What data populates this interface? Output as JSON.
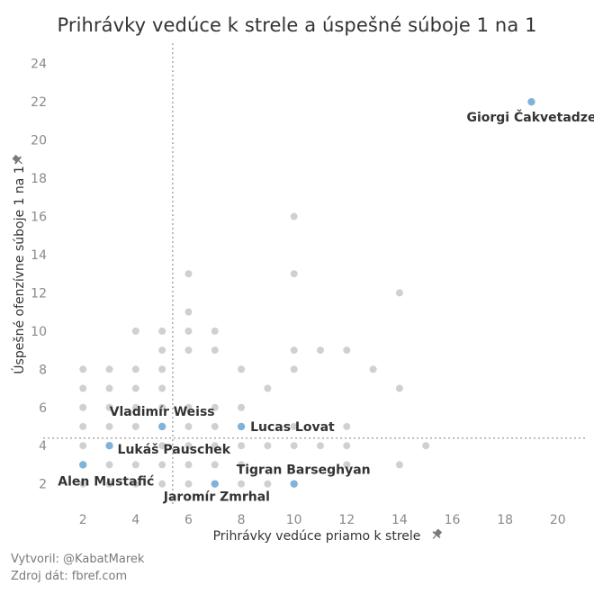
{
  "title": "Prihrávky vedúce k strele a úspešné súboje 1 na 1",
  "credits": {
    "author": "Vytvoril: @KabatMarek",
    "source": "Zdroj dát: fbref.com"
  },
  "chart_data": {
    "type": "scatter",
    "title": "Prihrávky vedúce k strele a úspešné súboje 1 na 1",
    "xlabel": "Prihrávky vedúce priamo k strele",
    "ylabel": "Úspešné ofenzívne súboje 1 na 1",
    "xlim": [
      0.9,
      21.1
    ],
    "ylim": [
      0.9,
      24.6
    ],
    "xticks": [
      2,
      4,
      6,
      8,
      10,
      12,
      14,
      16,
      18,
      20
    ],
    "yticks": [
      2,
      4,
      6,
      8,
      10,
      12,
      14,
      16,
      18,
      20,
      22,
      24
    ],
    "grid": false,
    "reference_lines": {
      "x": 5.4,
      "y": 4.4
    },
    "colors": {
      "other": "#d0d0d0",
      "highlight": "#80b3d9",
      "reference_line": "#a9a9a9"
    },
    "points": [
      [
        2,
        2
      ],
      [
        2,
        3
      ],
      [
        2,
        4
      ],
      [
        2,
        5
      ],
      [
        2,
        6
      ],
      [
        2,
        7
      ],
      [
        2,
        8
      ],
      [
        3,
        2
      ],
      [
        3,
        3
      ],
      [
        3,
        5
      ],
      [
        3,
        6
      ],
      [
        3,
        7
      ],
      [
        3,
        8
      ],
      [
        4,
        2
      ],
      [
        4,
        3
      ],
      [
        4,
        5
      ],
      [
        4,
        6
      ],
      [
        4,
        7
      ],
      [
        4,
        8
      ],
      [
        4,
        10
      ],
      [
        5,
        2
      ],
      [
        5,
        3
      ],
      [
        5,
        4
      ],
      [
        5,
        6
      ],
      [
        5,
        7
      ],
      [
        5,
        8
      ],
      [
        5,
        9
      ],
      [
        5,
        10
      ],
      [
        6,
        2
      ],
      [
        6,
        3
      ],
      [
        6,
        4
      ],
      [
        6,
        5
      ],
      [
        6,
        6
      ],
      [
        6,
        9
      ],
      [
        6,
        10
      ],
      [
        6,
        11
      ],
      [
        6,
        13
      ],
      [
        7,
        3
      ],
      [
        7,
        4
      ],
      [
        7,
        5
      ],
      [
        7,
        6
      ],
      [
        7,
        9
      ],
      [
        7,
        10
      ],
      [
        8,
        2
      ],
      [
        8,
        3
      ],
      [
        8,
        4
      ],
      [
        8,
        6
      ],
      [
        8,
        8
      ],
      [
        9,
        2
      ],
      [
        9,
        4
      ],
      [
        9,
        7
      ],
      [
        10,
        4
      ],
      [
        10,
        5
      ],
      [
        10,
        8
      ],
      [
        10,
        9
      ],
      [
        10,
        13
      ],
      [
        10,
        16
      ],
      [
        11,
        4
      ],
      [
        11,
        9
      ],
      [
        12,
        3
      ],
      [
        12,
        4
      ],
      [
        12,
        5
      ],
      [
        12,
        9
      ],
      [
        13,
        8
      ],
      [
        14,
        3
      ],
      [
        14,
        7
      ],
      [
        14,
        12
      ],
      [
        15,
        4
      ]
    ],
    "highlighted": [
      {
        "name": "Giorgi Čakvetadze",
        "x": 19,
        "y": 22
      },
      {
        "name": "Vladimír Weiss",
        "x": 5,
        "y": 5
      },
      {
        "name": "Lucas Lovat",
        "x": 8,
        "y": 5
      },
      {
        "name": "Lukáš Pauschek",
        "x": 3,
        "y": 4
      },
      {
        "name": "Alen Mustafić",
        "x": 2,
        "y": 3
      },
      {
        "name": "Tigran Barseghyan",
        "x": 10,
        "y": 2
      },
      {
        "name": "Jaromír Zmrhal",
        "x": 7,
        "y": 2
      }
    ]
  }
}
